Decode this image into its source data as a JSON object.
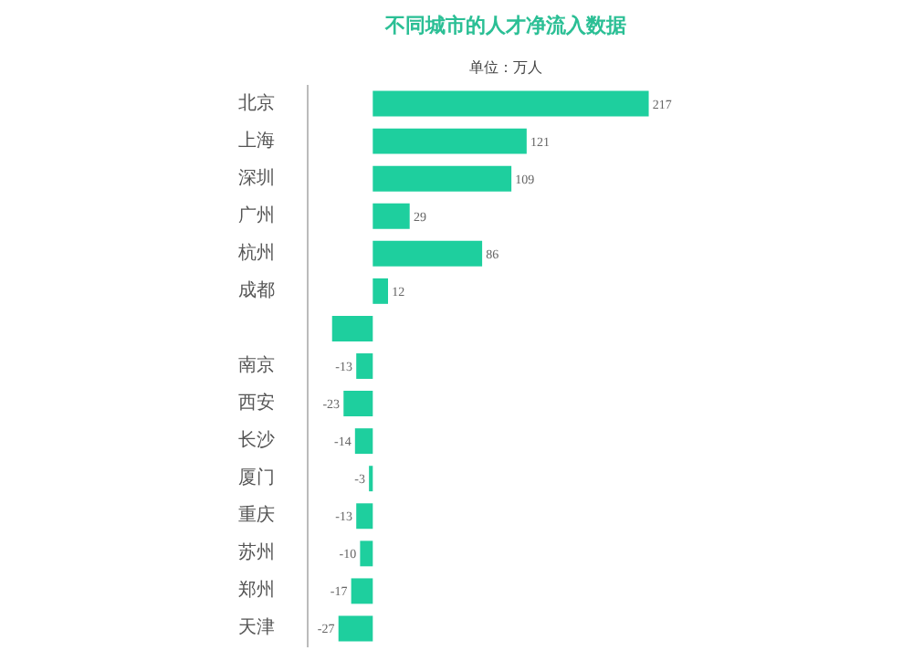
{
  "chart_data": {
    "type": "bar",
    "orientation": "horizontal",
    "title": "不同城市的人才净流入数据",
    "subtitle": "单位：万人",
    "categories": [
      "北京",
      "上海",
      "深圳",
      "广州",
      "杭州",
      "成都",
      null,
      "南京",
      "西安",
      "长沙",
      "厦门",
      "重庆",
      "苏州",
      "郑州",
      "天津"
    ],
    "values": [
      217,
      121,
      109,
      29,
      86,
      12,
      -32,
      -13,
      -23,
      -14,
      -3,
      -13,
      -10,
      -17,
      -27
    ],
    "value_labels": [
      "217",
      "121",
      "109",
      "29",
      "86",
      "12",
      null,
      "-13",
      "-23",
      "-14",
      "-3",
      "-13",
      "-10",
      "-17",
      "-27"
    ],
    "color": "#1ecf9e",
    "grid": false
  }
}
